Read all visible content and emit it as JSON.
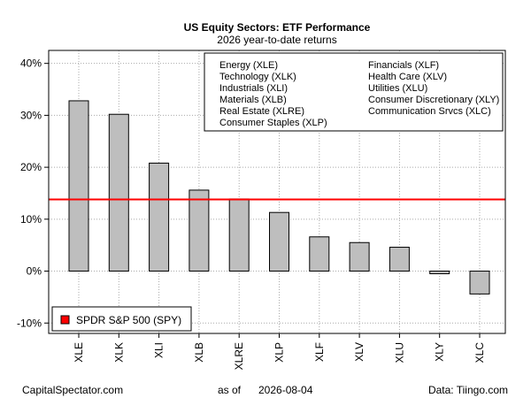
{
  "chart_data": {
    "type": "bar",
    "title": "US Equity Sectors: ETF Performance",
    "subtitle": "2026 year-to-date returns",
    "categories": [
      "XLE",
      "XLK",
      "XLI",
      "XLB",
      "XLRE",
      "XLP",
      "XLF",
      "XLV",
      "XLU",
      "XLY",
      "XLC"
    ],
    "values": [
      32.8,
      30.2,
      20.8,
      15.6,
      13.9,
      11.3,
      6.6,
      5.5,
      4.6,
      -0.5,
      -4.4
    ],
    "ylim": [
      -12,
      42.5
    ],
    "yticks": [
      -10,
      0,
      10,
      20,
      30,
      40
    ],
    "ytick_labels": [
      "-10%",
      "0%",
      "10%",
      "20%",
      "30%",
      "40%"
    ],
    "bar_color": "#bebebe",
    "grid": true,
    "reference_line": {
      "name": "SPDR S&P 500 (SPY)",
      "value": 13.8,
      "color": "#ff0000"
    },
    "legend": {
      "placement": "top-right",
      "col1": [
        "Energy (XLE)",
        "Technology (XLK)",
        "Industrials (XLI)",
        "Materials (XLB)",
        "Real Estate (XLRE)",
        "Consumer Staples (XLP)"
      ],
      "col2": [
        "Financials (XLF)",
        "Health Care (XLV)",
        "Utilities (XLU)",
        "Consumer Discretionary (XLY)",
        "Communication Srvcs (XLC)"
      ]
    },
    "spy_legend": {
      "placement": "bottom-left",
      "label": "SPDR S&P 500 (SPY)"
    }
  },
  "footer": {
    "left": "CapitalSpectator.com",
    "center_prefix": "as of",
    "center_date": "2026-08-04",
    "right": "Data: Tiingo.com"
  }
}
